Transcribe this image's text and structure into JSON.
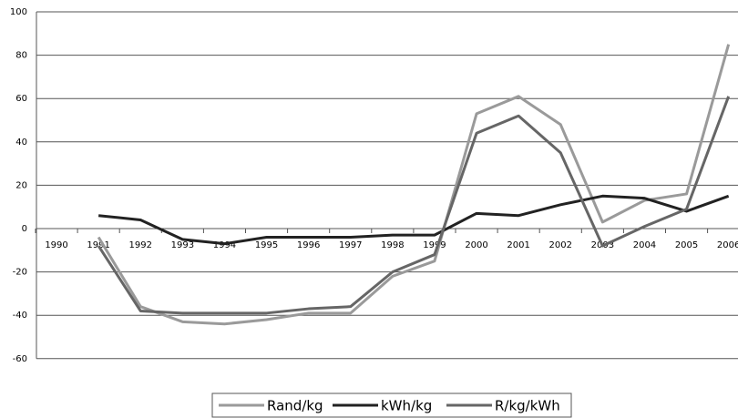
{
  "chart_data": {
    "type": "line",
    "categories": [
      "1990",
      "1991",
      "1992",
      "1993",
      "1994",
      "1995",
      "1996",
      "1997",
      "1998",
      "1999",
      "2000",
      "2001",
      "2002",
      "2003",
      "2004",
      "2005",
      "2006"
    ],
    "series": [
      {
        "name": "Rand/kg",
        "color": "#9a9a9a",
        "values": [
          null,
          -4,
          -36,
          -43,
          -44,
          -42,
          -39,
          -39,
          -22,
          -15,
          53,
          61,
          48,
          3,
          13,
          16,
          85
        ]
      },
      {
        "name": "kWh/kg",
        "color": "#222222",
        "values": [
          null,
          6,
          4,
          -5,
          -7,
          -4,
          -4,
          -4,
          -3,
          -3,
          7,
          6,
          11,
          15,
          14,
          8,
          15
        ]
      },
      {
        "name": "R/kg/kWh",
        "color": "#666666",
        "values": [
          null,
          -8,
          -38,
          -39,
          -39,
          -39,
          -37,
          -36,
          -20,
          -12,
          44,
          52,
          35,
          -8,
          1,
          9,
          61
        ]
      }
    ],
    "ylim": [
      -60,
      100
    ],
    "yticks": [
      -60,
      -40,
      -20,
      0,
      20,
      40,
      60,
      80,
      100
    ],
    "grid": true
  }
}
